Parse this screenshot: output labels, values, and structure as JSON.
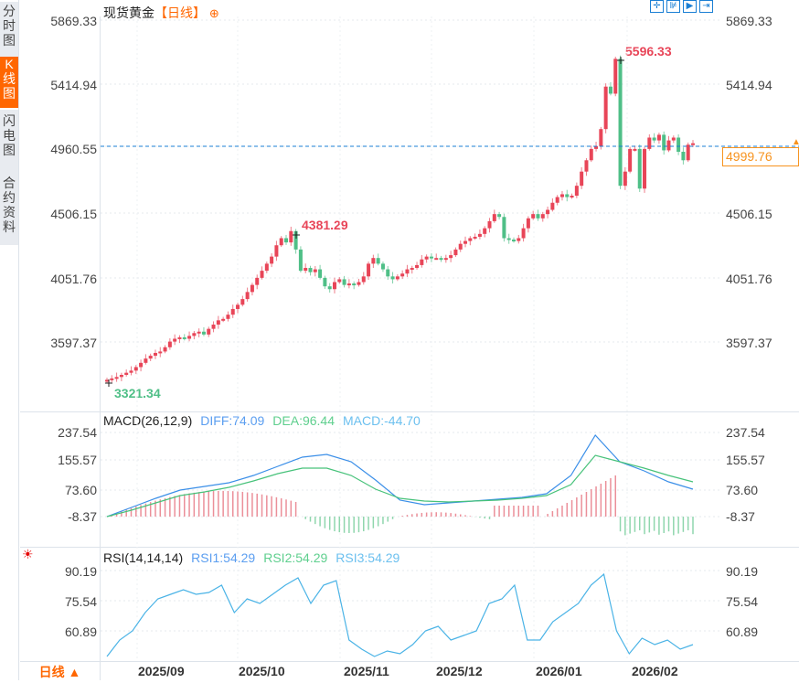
{
  "header": {
    "instrument": "现货黄金",
    "period_label": "【日线】",
    "add_icon": "⊕",
    "tools": [
      {
        "name": "crosshair-tool",
        "glyph": "✛"
      },
      {
        "name": "zoom-range-tool",
        "glyph": "⊯"
      },
      {
        "name": "play-tool",
        "glyph": "▶"
      },
      {
        "name": "move-right-tool",
        "glyph": "⇥"
      }
    ]
  },
  "sidebar": {
    "tabs": [
      {
        "label": "分时图",
        "active": false
      },
      {
        "label": "K线图",
        "active": true
      },
      {
        "label": "闪电图",
        "active": false
      },
      {
        "label": "合约资料",
        "active": false
      }
    ]
  },
  "footer": {
    "period_button": "日线 ▲",
    "x_labels": [
      "2025/09",
      "2025/10",
      "2025/11",
      "2025/12",
      "2026/01",
      "2026/02"
    ]
  },
  "colors": {
    "up": "#e84558",
    "down": "#4fbf87",
    "diff": "#3b8fe8",
    "dea": "#47c27a",
    "macd": "#5bb4ec",
    "rsi": "#4ab3e6",
    "accent": "#ff6600",
    "price_box": "#f7931e"
  },
  "main_chart": {
    "y_ticks": [
      "5869.33",
      "5414.94",
      "4960.55",
      "4506.15",
      "4051.76",
      "3597.37"
    ],
    "current_price": "4999.76",
    "annotations": {
      "high": "5596.33",
      "mid_high": "4381.29",
      "low": "3321.34"
    }
  },
  "macd_panel": {
    "title": "MACD(26,12,9)",
    "diff": "DIFF:74.09",
    "dea": "DEA:96.44",
    "macd": "MACD:-44.70",
    "y_ticks": [
      "237.54",
      "155.57",
      "73.60",
      "-8.37"
    ]
  },
  "rsi_panel": {
    "title": "RSI(14,14,14)",
    "rsi1": "RSI1:54.29",
    "rsi2": "RSI2:54.29",
    "rsi3": "RSI3:54.29",
    "y_ticks": [
      "90.19",
      "75.54",
      "60.89"
    ]
  },
  "chart_data": [
    {
      "type": "candlestick",
      "title": "现货黄金 日线",
      "x_range": [
        "2025/08",
        "2026/02"
      ],
      "ylim": [
        3300,
        5869.33
      ],
      "y_ticks": [
        5869.33,
        5414.94,
        4960.55,
        4506.15,
        4051.76,
        3597.37
      ],
      "closes_approx": [
        3330,
        3340,
        3350,
        3365,
        3380,
        3395,
        3420,
        3450,
        3480,
        3500,
        3520,
        3530,
        3560,
        3600,
        3620,
        3630,
        3620,
        3640,
        3660,
        3670,
        3650,
        3690,
        3720,
        3750,
        3760,
        3790,
        3830,
        3860,
        3900,
        3950,
        4000,
        4050,
        4100,
        4150,
        4200,
        4280,
        4330,
        4300,
        4380,
        4250,
        4100,
        4120,
        4090,
        4110,
        4050,
        3990,
        3970,
        4020,
        4040,
        4000,
        4010,
        4000,
        4020,
        4060,
        4150,
        4190,
        4150,
        4110,
        4060,
        4040,
        4060,
        4080,
        4110,
        4120,
        4140,
        4180,
        4200,
        4190,
        4190,
        4180,
        4190,
        4210,
        4250,
        4290,
        4310,
        4330,
        4340,
        4360,
        4400,
        4450,
        4500,
        4480,
        4330,
        4320,
        4310,
        4330,
        4400,
        4470,
        4500,
        4470,
        4500,
        4530,
        4580,
        4620,
        4640,
        4620,
        4630,
        4700,
        4800,
        4880,
        4960,
        4980,
        5100,
        5400,
        5350,
        5596,
        4700,
        4800,
        4960,
        4960,
        4680,
        4960,
        5040,
        5020,
        5060,
        4950,
        5020,
        5040,
        4940,
        4880,
        4990,
        5000
      ],
      "high_annotation": 5596.33,
      "low_annotation": 3321.34,
      "peak_annotation": 4381.29,
      "current_price": 4999.76
    },
    {
      "type": "line",
      "title": "MACD(26,12,9)",
      "series": [
        {
          "name": "DIFF",
          "last": 74.09
        },
        {
          "name": "DEA",
          "last": 96.44
        },
        {
          "name": "MACD",
          "last": -44.7
        }
      ],
      "y_ticks": [
        237.54,
        155.57,
        73.6,
        -8.37
      ]
    },
    {
      "type": "line",
      "title": "RSI(14,14,14)",
      "series": [
        {
          "name": "RSI1",
          "last": 54.29
        },
        {
          "name": "RSI2",
          "last": 54.29
        },
        {
          "name": "RSI3",
          "last": 54.29
        }
      ],
      "y_ticks": [
        90.19,
        75.54,
        60.89
      ]
    }
  ]
}
